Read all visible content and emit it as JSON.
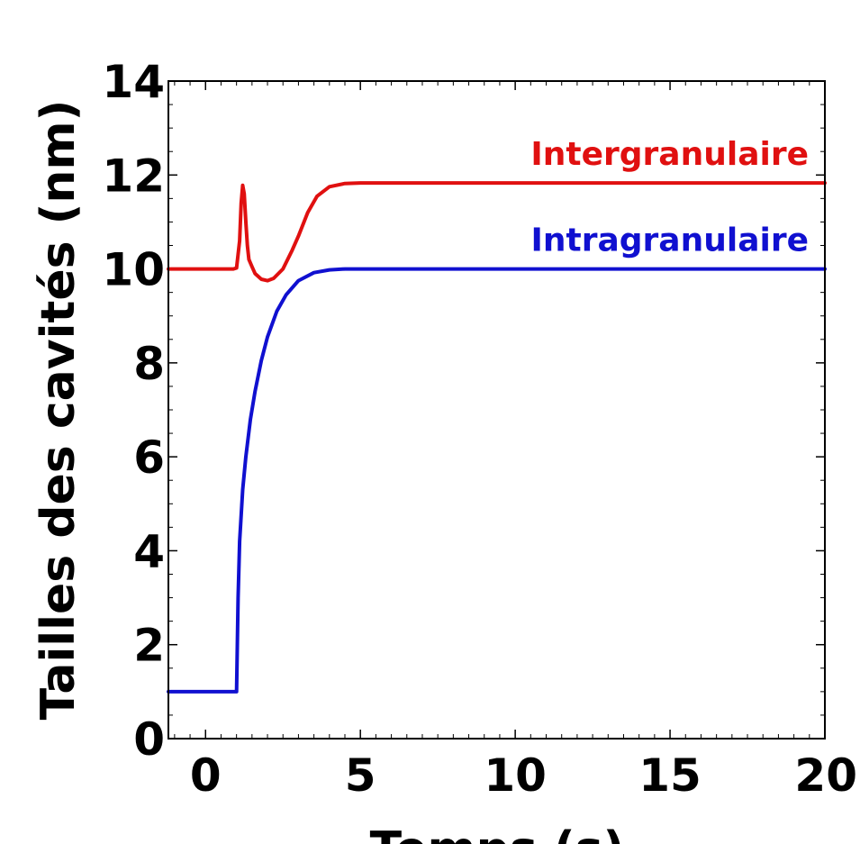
{
  "chart_data": {
    "type": "line",
    "xlabel": "Temps (s)",
    "ylabel": "Tailles des cavités (nm)",
    "xlim": [
      -1.2,
      20
    ],
    "ylim": [
      0,
      14
    ],
    "x_ticks": [
      0,
      5,
      10,
      15,
      20
    ],
    "y_ticks": [
      0,
      2,
      4,
      6,
      8,
      10,
      12,
      14
    ],
    "grid": false,
    "series": [
      {
        "name": "Intergranulaire",
        "color": "#e01010",
        "x": [
          -1.2,
          0.9,
          1.0,
          1.1,
          1.15,
          1.2,
          1.25,
          1.3,
          1.35,
          1.4,
          1.5,
          1.6,
          1.8,
          2.0,
          2.2,
          2.5,
          2.8,
          3.0,
          3.3,
          3.6,
          4.0,
          4.5,
          5.0,
          6.0,
          8.0,
          10.0,
          15.0,
          20.0
        ],
        "y": [
          10.0,
          10.0,
          10.02,
          10.6,
          11.4,
          11.78,
          11.6,
          11.0,
          10.5,
          10.2,
          10.05,
          9.9,
          9.78,
          9.75,
          9.8,
          10.0,
          10.4,
          10.7,
          11.2,
          11.55,
          11.75,
          11.82,
          11.83,
          11.83,
          11.83,
          11.83,
          11.83,
          11.83
        ]
      },
      {
        "name": "Intragranulaire",
        "color": "#1010d0",
        "x": [
          -1.2,
          0.9,
          1.0,
          1.05,
          1.1,
          1.2,
          1.3,
          1.45,
          1.6,
          1.8,
          2.0,
          2.3,
          2.6,
          3.0,
          3.5,
          4.0,
          4.5,
          5.0,
          6.0,
          8.0,
          10.0,
          15.0,
          20.0
        ],
        "y": [
          1.0,
          1.0,
          1.0,
          3.0,
          4.2,
          5.3,
          6.0,
          6.8,
          7.4,
          8.05,
          8.55,
          9.1,
          9.45,
          9.75,
          9.92,
          9.98,
          10.0,
          10.0,
          10.0,
          10.0,
          10.0,
          10.0,
          10.0
        ]
      }
    ]
  }
}
